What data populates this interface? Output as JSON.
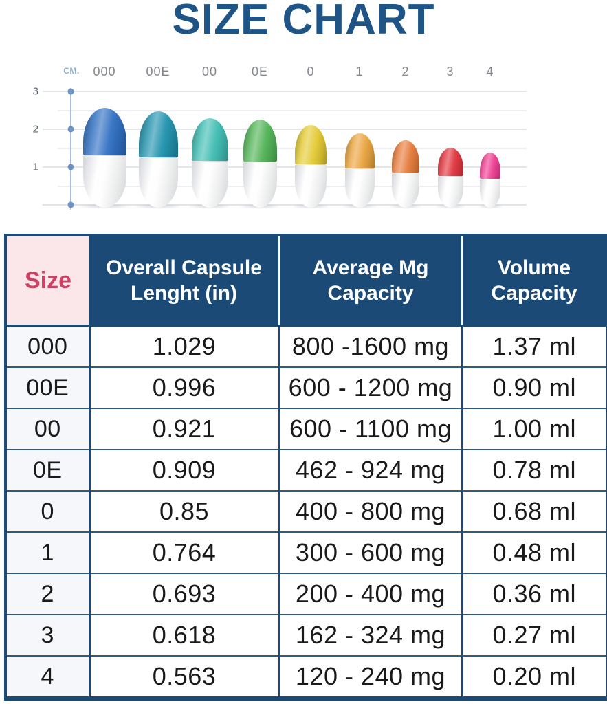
{
  "title": "SIZE CHART",
  "colors": {
    "title_text": "#1e5486",
    "navy": "#1b4a76",
    "row_border": "#2e5a83",
    "pink_bg": "#fbe7ea",
    "pink_text": "#cf4063",
    "first_col_bg": "#f5f7fa",
    "body_text": "#1a1a1a",
    "grid_major": "#e2e5ea",
    "grid_minor": "#edeff2",
    "axis_line": "#a9bedb",
    "axis_dot": "#6d93c3",
    "tick_text": "#5b6470",
    "label_text": "#84878c",
    "unit_text": "#8fb0cb"
  },
  "chart_data": [
    {
      "type": "bar",
      "title": "Capsule sizes on centimeter scale",
      "ylabel": "CM.",
      "ylim": [
        0,
        3
      ],
      "yticks": [
        3,
        2,
        1
      ],
      "grid": true,
      "legend": false,
      "categories": [
        "000",
        "00E",
        "00",
        "0E",
        "0",
        "1",
        "2",
        "3",
        "4"
      ],
      "values_cm": [
        2.61,
        2.53,
        2.34,
        2.31,
        2.16,
        1.94,
        1.76,
        1.57,
        1.43
      ],
      "colors": [
        "#2f6fc2",
        "#2193ae",
        "#3fbdb3",
        "#52b457",
        "#e3ca33",
        "#eaa43f",
        "#e77c3d",
        "#e1363f",
        "#ee3f93"
      ]
    },
    {
      "type": "table",
      "headers": [
        "Size",
        "Overall Capsule Lenght (in)",
        "Average Mg Capacity",
        "Volume Capacity"
      ],
      "rows": [
        [
          "000",
          "1.029",
          "800 -1600 mg",
          "1.37 ml"
        ],
        [
          "00E",
          "0.996",
          "600 - 1200 mg",
          "0.90 ml"
        ],
        [
          "00",
          "0.921",
          "600 - 1100 mg",
          "1.00 ml"
        ],
        [
          "0E",
          "0.909",
          "462 - 924 mg",
          "0.78 ml"
        ],
        [
          "0",
          "0.85",
          "400 - 800 mg",
          "0.68 ml"
        ],
        [
          "1",
          "0.764",
          "300 - 600 mg",
          "0.48 ml"
        ],
        [
          "2",
          "0.693",
          "200 - 400 mg",
          "0.36 ml"
        ],
        [
          "3",
          "0.618",
          "162 - 324 mg",
          "0.27 ml"
        ],
        [
          "4",
          "0.563",
          "120 - 240 mg",
          "0.20 ml"
        ]
      ]
    }
  ]
}
